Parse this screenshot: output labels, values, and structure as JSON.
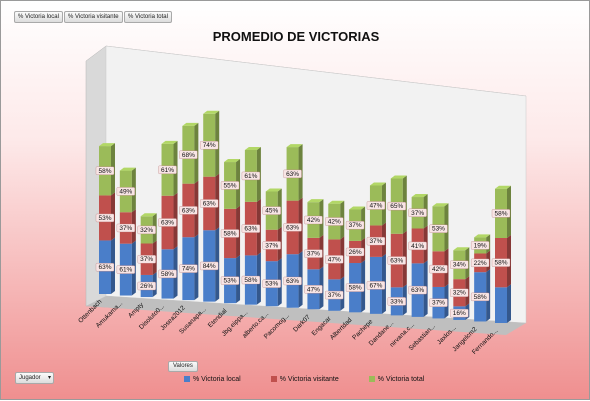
{
  "toolbar": {
    "btn_local": "% Victoria local",
    "btn_visitante": "% Victoria visitante",
    "btn_total": "% Victoria total"
  },
  "values_button": "Valores",
  "filter": {
    "label": "Jugador"
  },
  "chart_data": {
    "type": "bar",
    "stacked": true,
    "three_d": true,
    "title": "PROMEDIO DE VICTORIAS",
    "categories": [
      "Ottenbach",
      "Amukama...",
      "Ampty",
      "Disoluto0...",
      "Josea2012",
      "Susanapa...",
      "Etendial",
      "Jbg.eippa...",
      "alberto.ca...",
      "Pacomog...",
      "Dark07",
      "Engacar",
      "Albertdad",
      "Pachepe",
      "Dandane...",
      "nirvana.c...",
      "Sebastian...",
      "Jaxlos...",
      "Jangelcm2",
      "Fernando..."
    ],
    "series": [
      {
        "name": "% Victoria local",
        "color": "#4a7ec9",
        "values": [
          63,
          61,
          26,
          58,
          74,
          84,
          53,
          58,
          53,
          63,
          47,
          37,
          58,
          67,
          33,
          63,
          37,
          16,
          58,
          42
        ]
      },
      {
        "name": "% Victoria visitante",
        "color": "#c0504d",
        "values": [
          53,
          37,
          37,
          63,
          63,
          63,
          58,
          63,
          37,
          63,
          37,
          47,
          26,
          37,
          63,
          41,
          42,
          32,
          22,
          58
        ]
      },
      {
        "name": "% Victoria total",
        "color": "#9bbb59",
        "values": [
          58,
          49,
          32,
          61,
          68,
          74,
          55,
          61,
          45,
          63,
          42,
          42,
          37,
          47,
          65,
          37,
          53,
          34,
          19,
          58
        ]
      }
    ],
    "labels": [
      [
        "63%",
        "61%",
        "26%",
        "58%",
        "74%",
        "84%",
        "53%",
        "58%",
        "53%",
        "63%",
        "47%",
        "37%",
        "58%",
        "67%",
        "33%",
        "63%",
        "37%",
        "16%",
        "58%",
        "-"
      ],
      [
        "53%",
        "37%",
        "37%",
        "63%",
        "63%",
        "63%",
        "58%",
        "63%",
        "37%",
        "63%",
        "37%",
        "47%",
        "26%",
        "37%",
        "63%",
        "41%",
        "42%",
        "32%",
        "22%",
        "58%"
      ],
      [
        "58%",
        "49%",
        "32%",
        "61%",
        "68%",
        "74%",
        "55%",
        "61%",
        "45%",
        "63%",
        "42%",
        "42%",
        "37%",
        "47%",
        "65%",
        "37%",
        "53%",
        "34%",
        "19%",
        "58%"
      ]
    ],
    "legend_position": "bottom"
  }
}
